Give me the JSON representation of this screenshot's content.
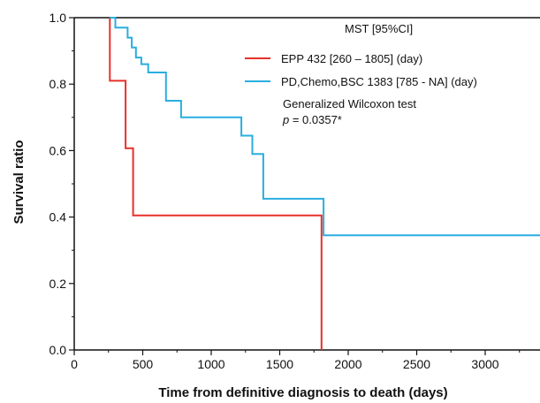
{
  "chart_data": {
    "type": "line",
    "subtype": "kaplan-meier step plot",
    "xlabel": "Time from definitive diagnosis to death (days)",
    "ylabel": "Survival ratio",
    "xlim": [
      0,
      3400
    ],
    "ylim": [
      0,
      1.0
    ],
    "x_ticks": [
      0,
      500,
      1000,
      1500,
      2000,
      2500,
      3000
    ],
    "y_ticks": [
      "0.0",
      "0.2",
      "0.4",
      "0.6",
      "0.8",
      "1.0"
    ],
    "grid": false,
    "legend_position": "top-right",
    "legend_title": "MST [95%CI]",
    "series": [
      {
        "name": "EPP 432 [260 – 1805] (day)",
        "color": "#e8302a",
        "points": [
          [
            260,
            1.0
          ],
          [
            260,
            0.81
          ],
          [
            375,
            0.81
          ],
          [
            375,
            0.607
          ],
          [
            430,
            0.607
          ],
          [
            430,
            0.405
          ],
          [
            1805,
            0.405
          ],
          [
            1805,
            0.0
          ]
        ]
      },
      {
        "name": "PD,Chemo,BSC 1383 [785 - NA] (day)",
        "color": "#29aee0",
        "points": [
          [
            260,
            1.0
          ],
          [
            300,
            1.0
          ],
          [
            300,
            0.97
          ],
          [
            390,
            0.97
          ],
          [
            390,
            0.94
          ],
          [
            420,
            0.94
          ],
          [
            420,
            0.91
          ],
          [
            450,
            0.91
          ],
          [
            450,
            0.88
          ],
          [
            490,
            0.88
          ],
          [
            490,
            0.86
          ],
          [
            540,
            0.86
          ],
          [
            540,
            0.835
          ],
          [
            670,
            0.835
          ],
          [
            670,
            0.75
          ],
          [
            780,
            0.75
          ],
          [
            780,
            0.7
          ],
          [
            1220,
            0.7
          ],
          [
            1220,
            0.645
          ],
          [
            1300,
            0.645
          ],
          [
            1300,
            0.59
          ],
          [
            1380,
            0.59
          ],
          [
            1380,
            0.455
          ],
          [
            1820,
            0.455
          ],
          [
            1820,
            0.345
          ],
          [
            3400,
            0.345
          ]
        ]
      }
    ],
    "annotations": {
      "test_label": "Generalized Wilcoxon test",
      "p_symbol": "p",
      "p_value": " = 0.0357*"
    }
  }
}
